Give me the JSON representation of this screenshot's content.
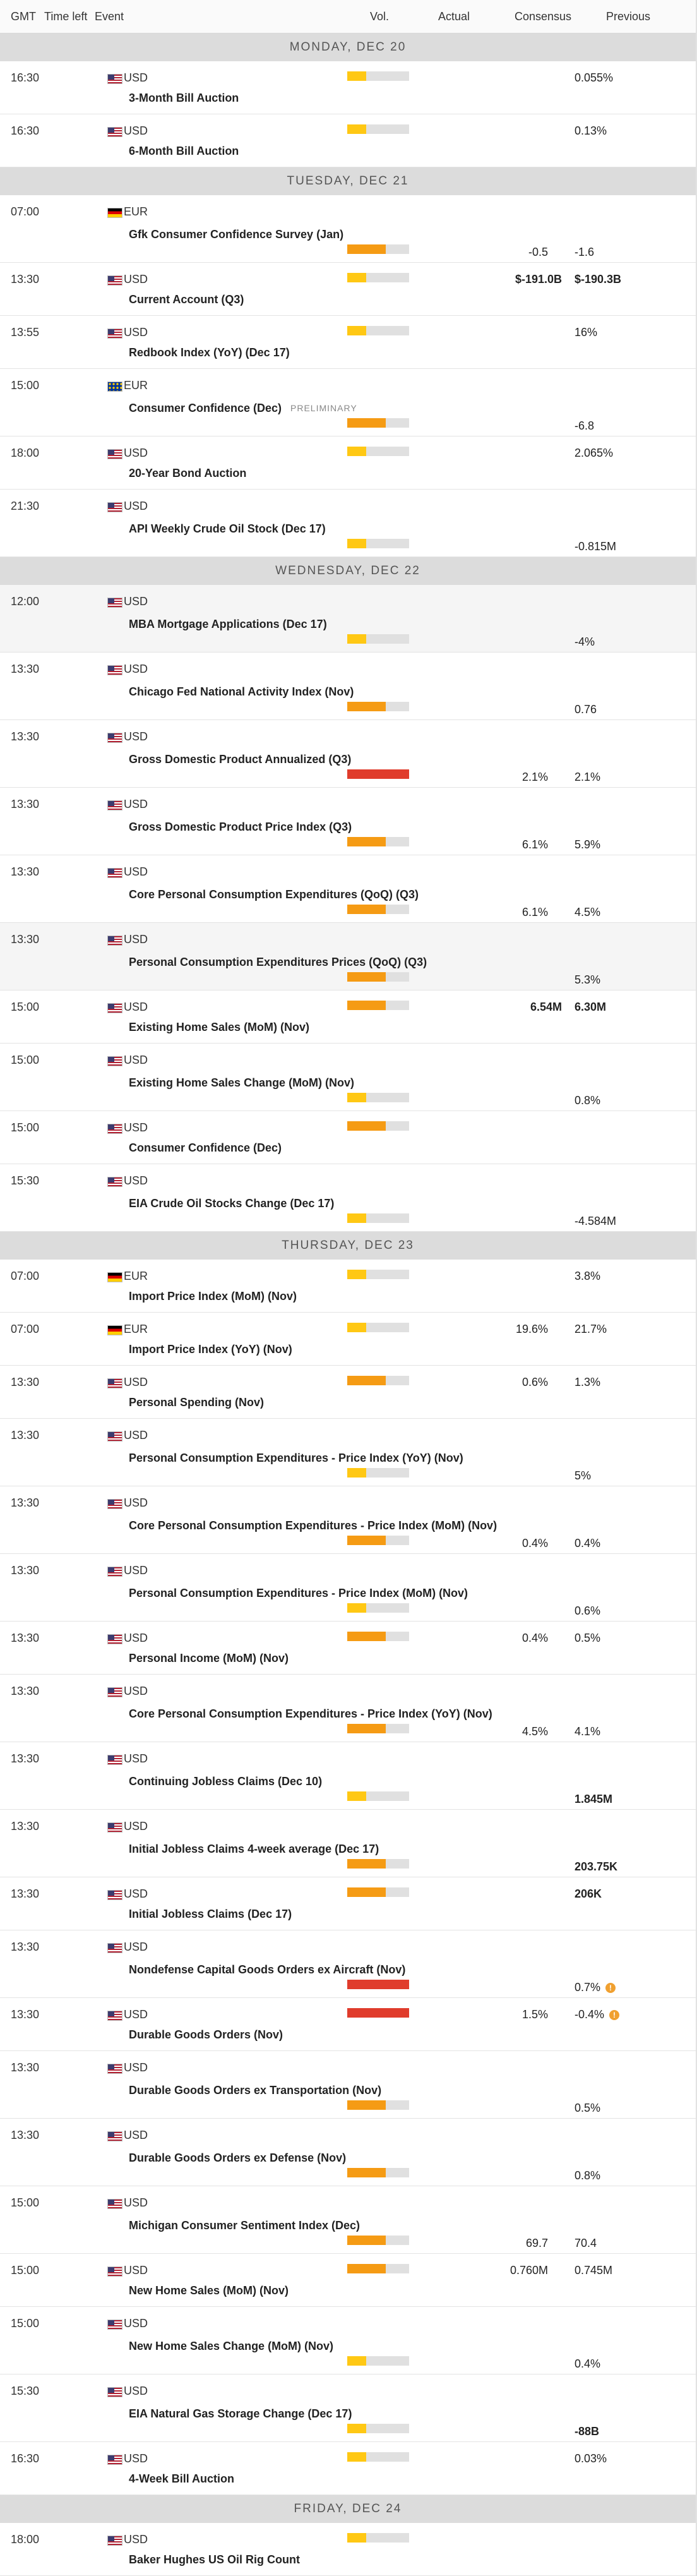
{
  "header": {
    "gmt": "GMT",
    "time_left": "Time left",
    "event": "Event",
    "vol": "Vol.",
    "actual": "Actual",
    "consensus": "Consensus",
    "previous": "Previous"
  },
  "colors": {
    "vol_low": "#ffc814",
    "vol_medium": "#f59b14",
    "vol_high": "#e03c2c",
    "day_header_bg": "#dcdcdc"
  },
  "days": [
    {
      "label": "MONDAY, DEC 20",
      "events": [
        {
          "time": "16:30",
          "currency": "USD",
          "flag": "us",
          "name": "3-Month Bill Auction",
          "volatility": "low",
          "consensus": "",
          "previous": "0.055%",
          "layout": "inline"
        },
        {
          "time": "16:30",
          "currency": "USD",
          "flag": "us",
          "name": "6-Month Bill Auction",
          "volatility": "low",
          "consensus": "",
          "previous": "0.13%",
          "layout": "inline"
        }
      ]
    },
    {
      "label": "TUESDAY, DEC 21",
      "events": [
        {
          "time": "07:00",
          "currency": "EUR",
          "flag": "de",
          "name": "Gfk Consumer Confidence Survey (Jan)",
          "volatility": "medium",
          "consensus": "-0.5",
          "previous": "-1.6",
          "layout": "stacked"
        },
        {
          "time": "13:30",
          "currency": "USD",
          "flag": "us",
          "name": "Current Account (Q3)",
          "volatility": "low",
          "consensus": "$-191.0B",
          "previous": "$-190.3B",
          "layout": "inline",
          "bold_values": true
        },
        {
          "time": "13:55",
          "currency": "USD",
          "flag": "us",
          "name": "Redbook Index (YoY) (Dec 17)",
          "volatility": "low",
          "consensus": "",
          "previous": "16%",
          "layout": "inline"
        },
        {
          "time": "15:00",
          "currency": "EUR",
          "flag": "eu",
          "name": "Consumer Confidence (Dec)",
          "tag": "PRELIMINARY",
          "volatility": "medium",
          "consensus": "",
          "previous": "-6.8",
          "layout": "stacked"
        },
        {
          "time": "18:00",
          "currency": "USD",
          "flag": "us",
          "name": "20-Year Bond Auction",
          "volatility": "low",
          "consensus": "",
          "previous": "2.065%",
          "layout": "inline"
        },
        {
          "time": "21:30",
          "currency": "USD",
          "flag": "us",
          "name": "API Weekly Crude Oil Stock (Dec 17)",
          "volatility": "low",
          "consensus": "",
          "previous": "-0.815M",
          "layout": "stacked"
        }
      ]
    },
    {
      "label": "WEDNESDAY, DEC 22",
      "events": [
        {
          "time": "12:00",
          "currency": "USD",
          "flag": "us",
          "name": "MBA Mortgage Applications (Dec 17)",
          "volatility": "low",
          "consensus": "",
          "previous": "-4%",
          "layout": "stacked",
          "shaded": true
        },
        {
          "time": "13:30",
          "currency": "USD",
          "flag": "us",
          "name": "Chicago Fed National Activity Index (Nov)",
          "volatility": "medium",
          "consensus": "",
          "previous": "0.76",
          "layout": "stacked"
        },
        {
          "time": "13:30",
          "currency": "USD",
          "flag": "us",
          "name": "Gross Domestic Product Annualized (Q3)",
          "volatility": "high",
          "consensus": "2.1%",
          "previous": "2.1%",
          "layout": "stacked"
        },
        {
          "time": "13:30",
          "currency": "USD",
          "flag": "us",
          "name": "Gross Domestic Product Price Index (Q3)",
          "volatility": "medium",
          "consensus": "6.1%",
          "previous": "5.9%",
          "layout": "stacked"
        },
        {
          "time": "13:30",
          "currency": "USD",
          "flag": "us",
          "name": "Core Personal Consumption Expenditures (QoQ) (Q3)",
          "volatility": "medium",
          "consensus": "6.1%",
          "previous": "4.5%",
          "layout": "stacked"
        },
        {
          "time": "13:30",
          "currency": "USD",
          "flag": "us",
          "name": "Personal Consumption Expenditures Prices (QoQ) (Q3)",
          "volatility": "medium",
          "consensus": "",
          "previous": "5.3%",
          "layout": "stacked",
          "shaded": true
        },
        {
          "time": "15:00",
          "currency": "USD",
          "flag": "us",
          "name": "Existing Home Sales (MoM) (Nov)",
          "volatility": "medium",
          "consensus": "6.54M",
          "previous": "6.30M",
          "layout": "inline",
          "bold_values": true
        },
        {
          "time": "15:00",
          "currency": "USD",
          "flag": "us",
          "name": "Existing Home Sales Change (MoM) (Nov)",
          "volatility": "low",
          "consensus": "",
          "previous": "0.8%",
          "layout": "stacked"
        },
        {
          "time": "15:00",
          "currency": "USD",
          "flag": "us",
          "name": "Consumer Confidence (Dec)",
          "volatility": "medium",
          "consensus": "",
          "previous": "",
          "layout": "inline"
        },
        {
          "time": "15:30",
          "currency": "USD",
          "flag": "us",
          "name": "EIA Crude Oil Stocks Change (Dec 17)",
          "volatility": "low",
          "consensus": "",
          "previous": "-4.584M",
          "layout": "stacked"
        }
      ]
    },
    {
      "label": "THURSDAY, DEC 23",
      "events": [
        {
          "time": "07:00",
          "currency": "EUR",
          "flag": "de",
          "name": "Import Price Index (MoM) (Nov)",
          "volatility": "low",
          "consensus": "",
          "previous": "3.8%",
          "layout": "inline"
        },
        {
          "time": "07:00",
          "currency": "EUR",
          "flag": "de",
          "name": "Import Price Index (YoY) (Nov)",
          "volatility": "low",
          "consensus": "19.6%",
          "previous": "21.7%",
          "layout": "inline"
        },
        {
          "time": "13:30",
          "currency": "USD",
          "flag": "us",
          "name": "Personal Spending (Nov)",
          "volatility": "medium",
          "consensus": "0.6%",
          "previous": "1.3%",
          "layout": "inline"
        },
        {
          "time": "13:30",
          "currency": "USD",
          "flag": "us",
          "name": "Personal Consumption Expenditures - Price Index (YoY) (Nov)",
          "volatility": "low",
          "consensus": "",
          "previous": "5%",
          "layout": "stacked"
        },
        {
          "time": "13:30",
          "currency": "USD",
          "flag": "us",
          "name": "Core Personal Consumption Expenditures - Price Index (MoM) (Nov)",
          "volatility": "medium",
          "consensus": "0.4%",
          "previous": "0.4%",
          "layout": "stacked"
        },
        {
          "time": "13:30",
          "currency": "USD",
          "flag": "us",
          "name": "Personal Consumption Expenditures - Price Index (MoM) (Nov)",
          "volatility": "low",
          "consensus": "",
          "previous": "0.6%",
          "layout": "stacked"
        },
        {
          "time": "13:30",
          "currency": "USD",
          "flag": "us",
          "name": "Personal Income (MoM) (Nov)",
          "volatility": "medium",
          "consensus": "0.4%",
          "previous": "0.5%",
          "layout": "inline"
        },
        {
          "time": "13:30",
          "currency": "USD",
          "flag": "us",
          "name": "Core Personal Consumption Expenditures - Price Index (YoY) (Nov)",
          "volatility": "medium",
          "consensus": "4.5%",
          "previous": "4.1%",
          "layout": "stacked"
        },
        {
          "time": "13:30",
          "currency": "USD",
          "flag": "us",
          "name": "Continuing Jobless Claims (Dec 10)",
          "volatility": "low",
          "consensus": "",
          "previous": "1.845M",
          "layout": "stacked",
          "bold_values": true
        },
        {
          "time": "13:30",
          "currency": "USD",
          "flag": "us",
          "name": "Initial Jobless Claims 4-week average (Dec 17)",
          "volatility": "medium",
          "consensus": "",
          "previous": "203.75K",
          "layout": "stacked",
          "bold_values": true
        },
        {
          "time": "13:30",
          "currency": "USD",
          "flag": "us",
          "name": "Initial Jobless Claims (Dec 17)",
          "volatility": "medium",
          "consensus": "",
          "previous": "206K",
          "layout": "inline",
          "bold_values": true
        },
        {
          "time": "13:30",
          "currency": "USD",
          "flag": "us",
          "name": "Nondefense Capital Goods Orders ex Aircraft (Nov)",
          "volatility": "high",
          "consensus": "",
          "previous": "0.7%",
          "layout": "stacked",
          "revised": true
        },
        {
          "time": "13:30",
          "currency": "USD",
          "flag": "us",
          "name": "Durable Goods Orders (Nov)",
          "volatility": "high",
          "consensus": "1.5%",
          "previous": "-0.4%",
          "layout": "inline",
          "revised": true
        },
        {
          "time": "13:30",
          "currency": "USD",
          "flag": "us",
          "name": "Durable Goods Orders ex Transportation (Nov)",
          "volatility": "medium",
          "consensus": "",
          "previous": "0.5%",
          "layout": "stacked"
        },
        {
          "time": "13:30",
          "currency": "USD",
          "flag": "us",
          "name": "Durable Goods Orders ex Defense (Nov)",
          "volatility": "medium",
          "consensus": "",
          "previous": "0.8%",
          "layout": "stacked"
        },
        {
          "time": "15:00",
          "currency": "USD",
          "flag": "us",
          "name": "Michigan Consumer Sentiment Index (Dec)",
          "volatility": "medium",
          "consensus": "69.7",
          "previous": "70.4",
          "layout": "stacked"
        },
        {
          "time": "15:00",
          "currency": "USD",
          "flag": "us",
          "name": "New Home Sales (MoM) (Nov)",
          "volatility": "medium",
          "consensus": "0.760M",
          "previous": "0.745M",
          "layout": "inline"
        },
        {
          "time": "15:00",
          "currency": "USD",
          "flag": "us",
          "name": "New Home Sales Change (MoM) (Nov)",
          "volatility": "low",
          "consensus": "",
          "previous": "0.4%",
          "layout": "stacked"
        },
        {
          "time": "15:30",
          "currency": "USD",
          "flag": "us",
          "name": "EIA Natural Gas Storage Change (Dec 17)",
          "volatility": "low",
          "consensus": "",
          "previous": "-88B",
          "layout": "stacked",
          "bold_values": true
        },
        {
          "time": "16:30",
          "currency": "USD",
          "flag": "us",
          "name": "4-Week Bill Auction",
          "volatility": "low",
          "consensus": "",
          "previous": "0.03%",
          "layout": "inline"
        }
      ]
    },
    {
      "label": "FRIDAY, DEC 24",
      "events": [
        {
          "time": "18:00",
          "currency": "USD",
          "flag": "us",
          "name": "Baker Hughes US Oil Rig Count",
          "volatility": "low",
          "consensus": "",
          "previous": "",
          "layout": "inline"
        }
      ]
    }
  ]
}
